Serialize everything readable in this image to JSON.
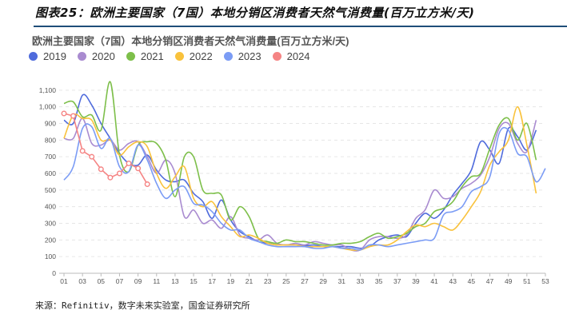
{
  "header": "图表25：欧洲主要国家（7国）本地分销区消费者天然气消费量(百万立方米/天)",
  "source": "来源：Refinitiv，数字未来实验室，国金证券研究所",
  "chart_data": {
    "type": "line",
    "title": "欧洲主要国家（7国）本地分销区消费者天然气消费量(百万立方米/天)",
    "xlabel": "",
    "ylabel": "",
    "ylim": [
      0,
      1200
    ],
    "yticks": [
      0,
      100,
      200,
      300,
      400,
      500,
      600,
      700,
      800,
      900,
      1000,
      1100
    ],
    "ytick_labels": [
      "0",
      "100",
      "200",
      "300",
      "400",
      "500",
      "600",
      "700",
      "800",
      "900",
      "1,000",
      "1,100"
    ],
    "xlim": [
      1,
      53
    ],
    "xtick_labels": [
      "01",
      "03",
      "05",
      "07",
      "09",
      "11",
      "13",
      "15",
      "17",
      "19",
      "21",
      "23",
      "25",
      "27",
      "29",
      "31",
      "33",
      "35",
      "37",
      "39",
      "41",
      "43",
      "45",
      "47",
      "49",
      "51",
      "53"
    ],
    "grid": true,
    "legend": "top-left",
    "series": [
      {
        "name": "2019",
        "color": "#4f6bdc",
        "markers": false,
        "values": [
          920,
          900,
          1070,
          1010,
          900,
          810,
          720,
          660,
          650,
          710,
          620,
          560,
          550,
          560,
          480,
          430,
          330,
          440,
          320,
          250,
          220,
          190,
          180,
          170,
          170,
          170,
          165,
          170,
          160,
          160,
          160,
          160,
          150,
          160,
          200,
          220,
          230,
          220,
          300,
          360,
          330,
          380,
          470,
          540,
          620,
          790,
          740,
          660,
          870,
          820,
          740,
          860
        ]
      },
      {
        "name": "2020",
        "color": "#a98bd0",
        "markers": false,
        "values": [
          810,
          810,
          930,
          780,
          770,
          800,
          740,
          780,
          790,
          700,
          600,
          680,
          600,
          340,
          380,
          300,
          320,
          270,
          340,
          230,
          210,
          200,
          230,
          180,
          170,
          180,
          170,
          190,
          180,
          170,
          170,
          140,
          140,
          200,
          220,
          220,
          210,
          230,
          330,
          380,
          500,
          450,
          460,
          510,
          540,
          590,
          700,
          870,
          900,
          780,
          730,
          920
        ]
      },
      {
        "name": "2021",
        "color": "#7dbf4a",
        "markers": false,
        "values": [
          1020,
          1030,
          940,
          950,
          860,
          1150,
          710,
          610,
          770,
          790,
          780,
          680,
          460,
          700,
          700,
          500,
          480,
          470,
          320,
          400,
          340,
          210,
          190,
          180,
          200,
          190,
          190,
          180,
          170,
          170,
          180,
          180,
          190,
          220,
          240,
          210,
          220,
          240,
          280,
          300,
          370,
          390,
          430,
          520,
          580,
          600,
          750,
          890,
          930,
          800,
          900,
          680
        ]
      },
      {
        "name": "2022",
        "color": "#f9c23c",
        "markers": false,
        "values": [
          810,
          950,
          930,
          920,
          800,
          800,
          710,
          760,
          790,
          760,
          600,
          510,
          580,
          640,
          450,
          400,
          430,
          340,
          280,
          220,
          230,
          210,
          180,
          170,
          170,
          170,
          160,
          160,
          160,
          160,
          150,
          140,
          140,
          160,
          170,
          170,
          200,
          250,
          290,
          280,
          300,
          280,
          260,
          320,
          400,
          490,
          650,
          730,
          800,
          1000,
          770,
          480
        ]
      },
      {
        "name": "2023",
        "color": "#7b9cf5",
        "markers": false,
        "values": [
          560,
          640,
          870,
          880,
          750,
          810,
          640,
          610,
          770,
          680,
          540,
          450,
          500,
          520,
          420,
          410,
          370,
          300,
          260,
          260,
          210,
          190,
          170,
          160,
          160,
          160,
          160,
          150,
          150,
          160,
          150,
          150,
          140,
          170,
          170,
          160,
          170,
          180,
          190,
          200,
          210,
          350,
          370,
          400,
          490,
          520,
          580,
          840,
          860,
          720,
          700,
          550,
          630
        ]
      },
      {
        "name": "2024",
        "color": "#f58484",
        "markers": true,
        "values": [
          960,
          945,
          735,
          700,
          625,
          575,
          600,
          660,
          630,
          535
        ]
      }
    ]
  }
}
